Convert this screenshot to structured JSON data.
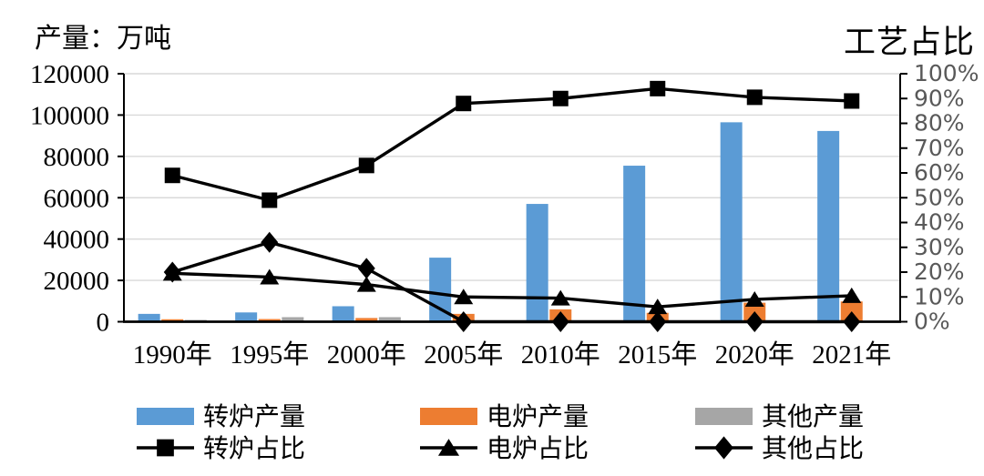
{
  "chart_data": {
    "type": "combo-bar-line",
    "title_left": "产量：万吨",
    "title_right": "工艺占比",
    "categories": [
      "1990年",
      "1995年",
      "2000年",
      "2005年",
      "2010年",
      "2015年",
      "2020年",
      "2021年"
    ],
    "bar_series": [
      {
        "key": "converter-output",
        "name": "转炉产量",
        "color": "#5B9BD5",
        "values": [
          3800,
          4500,
          7500,
          31000,
          57000,
          75500,
          96500,
          92300
        ]
      },
      {
        "key": "eaf-output",
        "name": "电炉产量",
        "color": "#ED7D31",
        "values": [
          1200,
          1300,
          1800,
          3800,
          6000,
          4300,
          9200,
          9800
        ]
      },
      {
        "key": "other-output",
        "name": "其他产量",
        "color": "#A6A6A6",
        "values": [
          900,
          2200,
          2200,
          0,
          0,
          0,
          0,
          0
        ]
      }
    ],
    "line_series": [
      {
        "key": "converter-share",
        "name": "转炉占比",
        "marker": "square",
        "values": [
          59,
          49,
          63,
          88,
          90,
          94,
          90.5,
          89
        ]
      },
      {
        "key": "eaf-share",
        "name": "电炉占比",
        "marker": "triangle",
        "values": [
          19.5,
          18,
          15,
          10,
          9.5,
          6,
          9,
          10.5
        ]
      },
      {
        "key": "other-share",
        "name": "其他占比",
        "marker": "diamond",
        "values": [
          20,
          32,
          21.5,
          0,
          0,
          0,
          0,
          0
        ]
      }
    ],
    "left_axis": {
      "min": 0,
      "max": 120000,
      "step": 20000,
      "labels": [
        "0",
        "20000",
        "40000",
        "60000",
        "80000",
        "100000",
        "120000"
      ]
    },
    "right_axis": {
      "min": 0,
      "max": 100,
      "step": 10,
      "labels": [
        "0%",
        "10%",
        "20%",
        "30%",
        "40%",
        "50%",
        "60%",
        "70%",
        "80%",
        "90%",
        "100%"
      ]
    },
    "grid": true,
    "legend_position": "bottom",
    "line_color": "#000000",
    "grid_color": "#D9D9D9",
    "right_label_color": "#595959"
  }
}
